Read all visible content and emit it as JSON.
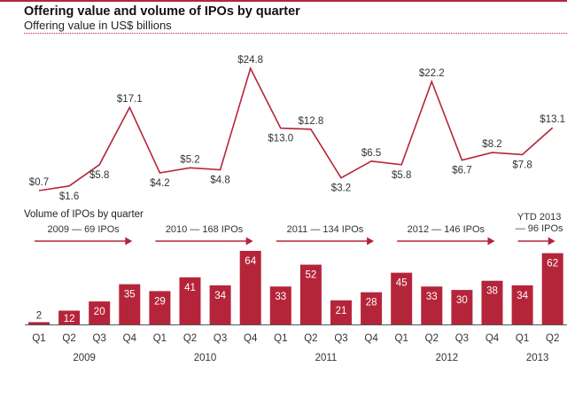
{
  "header": {
    "title": "Offering value and volume of IPOs by quarter",
    "subtitle": "Offering value in US$ billions"
  },
  "colors": {
    "accent": "#b5253a",
    "text": "#333333"
  },
  "chart_data": [
    {
      "type": "line",
      "title": "Offering value in US$ billions",
      "xlabel": "",
      "ylabel": "Offering value (US$ billions)",
      "categories": [
        "Q1 2009",
        "Q2 2009",
        "Q3 2009",
        "Q4 2009",
        "Q1 2010",
        "Q2 2010",
        "Q3 2010",
        "Q4 2010",
        "Q1 2011",
        "Q2 2011",
        "Q3 2011",
        "Q4 2011",
        "Q1 2012",
        "Q2 2012",
        "Q3 2012",
        "Q4 2012",
        "Q1 2013",
        "Q2 2013"
      ],
      "values": [
        0.7,
        1.6,
        5.8,
        17.1,
        4.2,
        5.2,
        4.8,
        24.8,
        13.0,
        12.8,
        3.2,
        6.5,
        5.8,
        22.2,
        6.7,
        8.2,
        7.8,
        13.1
      ],
      "labels": [
        "$0.7",
        "$1.6",
        "$5.8",
        "$17.1",
        "$4.2",
        "$5.2",
        "$4.8",
        "$24.8",
        "$13.0",
        "$12.8",
        "$3.2",
        "$6.5",
        "$5.8",
        "$22.2",
        "$6.7",
        "$8.2",
        "$7.8",
        "$13.1"
      ],
      "label_pos": [
        "above",
        "below",
        "below",
        "above",
        "below",
        "above",
        "below",
        "above",
        "below",
        "above",
        "below",
        "above",
        "below",
        "above",
        "below",
        "above",
        "below",
        "above"
      ],
      "ylim": [
        0,
        25
      ],
      "grid": false
    },
    {
      "type": "bar",
      "title": "Volume of IPOs by quarter",
      "categories": [
        "Q1",
        "Q2",
        "Q3",
        "Q4",
        "Q1",
        "Q2",
        "Q3",
        "Q4",
        "Q1",
        "Q2",
        "Q3",
        "Q4",
        "Q1",
        "Q2",
        "Q3",
        "Q4",
        "Q1",
        "Q2"
      ],
      "values": [
        2,
        12,
        20,
        35,
        29,
        41,
        34,
        64,
        33,
        52,
        21,
        28,
        45,
        33,
        30,
        38,
        34,
        62
      ],
      "years": [
        {
          "label": "2009",
          "start": 0,
          "end": 3
        },
        {
          "label": "2010",
          "start": 4,
          "end": 7
        },
        {
          "label": "2011",
          "start": 8,
          "end": 11
        },
        {
          "label": "2012",
          "start": 12,
          "end": 15
        },
        {
          "label": "2013",
          "start": 16,
          "end": 17
        }
      ],
      "annotations": [
        {
          "lines": [
            "2009 — 69 IPOs"
          ],
          "start": 0,
          "end": 3
        },
        {
          "lines": [
            "2010 — 168 IPOs"
          ],
          "start": 4,
          "end": 7
        },
        {
          "lines": [
            "2011 — 134 IPOs"
          ],
          "start": 8,
          "end": 11
        },
        {
          "lines": [
            "2012 — 146 IPOs"
          ],
          "start": 12,
          "end": 15
        },
        {
          "lines": [
            "YTD 2013",
            "— 96 IPOs"
          ],
          "start": 16,
          "end": 17
        }
      ],
      "ylim": [
        0,
        64
      ],
      "grid": false
    }
  ]
}
